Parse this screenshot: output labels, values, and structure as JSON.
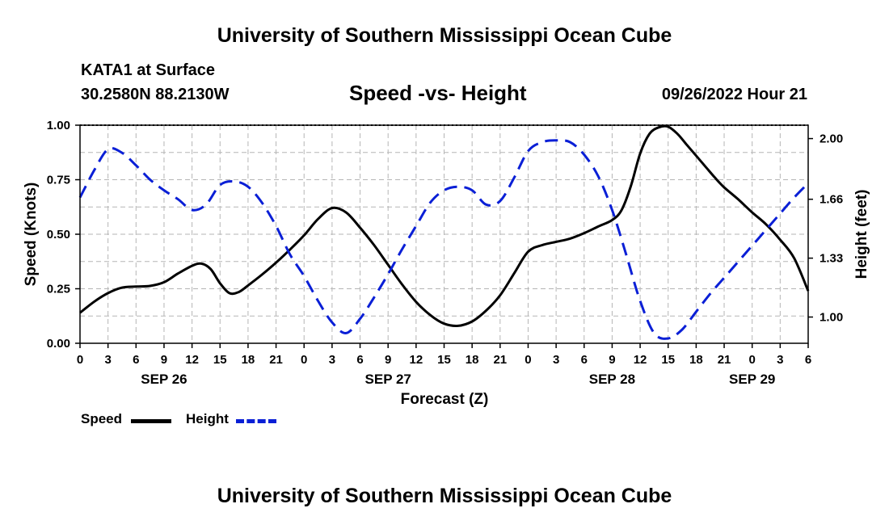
{
  "page": {
    "title_top": "University of Southern Mississippi Ocean Cube",
    "title_bottom": "University of Southern Mississippi Ocean Cube",
    "station": "KATA1 at Surface",
    "coords": "30.2580N  88.2130W",
    "subtitle": "Speed -vs- Height",
    "datetime": "09/26/2022 Hour 21"
  },
  "legend": {
    "speed_label": "Speed",
    "height_label": "Height"
  },
  "colors": {
    "speed": "#000000",
    "height": "#0a1fd6",
    "grid": "#b5b5b5"
  },
  "chart_data": {
    "type": "line",
    "title": "Speed -vs- Height",
    "xlabel": "Forecast (Z)",
    "ylabel": "Speed (Knots)",
    "y2label": "Height (feet)",
    "xlim": [
      0,
      78
    ],
    "ylim": [
      0,
      1
    ],
    "y2lim": [
      0.853,
      2.075
    ],
    "grid": true,
    "x_ticks": [
      0,
      3,
      6,
      9,
      12,
      15,
      18,
      21,
      24,
      27,
      30,
      33,
      36,
      39,
      42,
      45,
      48,
      51,
      54,
      57,
      60,
      63,
      66,
      69,
      72,
      75,
      78
    ],
    "x_tick_labels": [
      "0",
      "3",
      "6",
      "9",
      "12",
      "15",
      "18",
      "21",
      "0",
      "3",
      "6",
      "9",
      "12",
      "15",
      "18",
      "21",
      "0",
      "3",
      "6",
      "9",
      "12",
      "15",
      "18",
      "21",
      "0",
      "3",
      "6"
    ],
    "date_labels": [
      {
        "x": 9,
        "label": "SEP 26"
      },
      {
        "x": 33,
        "label": "SEP 27"
      },
      {
        "x": 57,
        "label": "SEP 28"
      },
      {
        "x": 72,
        "label": "SEP 29"
      }
    ],
    "y_ticks": [
      0.0,
      0.25,
      0.5,
      0.75,
      1.0
    ],
    "y_tick_labels": [
      "0.00",
      "0.25",
      "0.50",
      "0.75",
      "1.00"
    ],
    "y2_ticks": [
      1.0,
      1.33,
      1.66,
      2.0
    ],
    "y2_tick_labels": [
      "1.00",
      "1.33",
      "1.66",
      "2.00"
    ],
    "series": [
      {
        "name": "Speed",
        "axis": "left",
        "style": "solid",
        "x": [
          0,
          1.5,
          3,
          4.5,
          6,
          7.5,
          9,
          10.5,
          12,
          13,
          14,
          15,
          16,
          17,
          18,
          19.5,
          21,
          22.5,
          24,
          25.5,
          27,
          28.5,
          30,
          31.5,
          33,
          34.5,
          36,
          37.5,
          39,
          40.5,
          42,
          43.5,
          45,
          46.5,
          48,
          49.5,
          51,
          52.5,
          54,
          55.5,
          57,
          58,
          59,
          60,
          61,
          62,
          63,
          64,
          65,
          66,
          67,
          68,
          69,
          70.5,
          72,
          73.5,
          75,
          76.5,
          78
        ],
        "y": [
          0.14,
          0.19,
          0.23,
          0.255,
          0.26,
          0.263,
          0.28,
          0.32,
          0.355,
          0.365,
          0.34,
          0.275,
          0.23,
          0.235,
          0.265,
          0.315,
          0.37,
          0.43,
          0.495,
          0.57,
          0.62,
          0.6,
          0.53,
          0.45,
          0.36,
          0.27,
          0.19,
          0.13,
          0.09,
          0.08,
          0.1,
          0.15,
          0.22,
          0.32,
          0.42,
          0.45,
          0.465,
          0.48,
          0.505,
          0.535,
          0.565,
          0.61,
          0.72,
          0.87,
          0.96,
          0.99,
          0.993,
          0.96,
          0.91,
          0.86,
          0.81,
          0.76,
          0.715,
          0.66,
          0.6,
          0.545,
          0.475,
          0.39,
          0.24
        ]
      },
      {
        "name": "Height",
        "axis": "right",
        "style": "dashed",
        "x": [
          0,
          1.5,
          3,
          4.5,
          6,
          7.5,
          9,
          10.5,
          12,
          13.5,
          15,
          16.5,
          18,
          19.5,
          21,
          22.5,
          24,
          25.5,
          27,
          28.5,
          30,
          31.5,
          33,
          34.5,
          36,
          37.5,
          39,
          40.5,
          42,
          43.5,
          45,
          46.5,
          48,
          49.5,
          51,
          52.5,
          54,
          55.5,
          57,
          58.5,
          60,
          61.5,
          63,
          64.5,
          66,
          67.5,
          69,
          70.5,
          72,
          73.5,
          75,
          76.5,
          78
        ],
        "y": [
          1.67,
          1.82,
          1.94,
          1.92,
          1.85,
          1.77,
          1.71,
          1.66,
          1.6,
          1.63,
          1.74,
          1.76,
          1.73,
          1.64,
          1.51,
          1.35,
          1.23,
          1.09,
          0.97,
          0.91,
          0.99,
          1.11,
          1.24,
          1.38,
          1.51,
          1.64,
          1.71,
          1.73,
          1.71,
          1.63,
          1.65,
          1.78,
          1.93,
          1.98,
          1.99,
          1.98,
          1.91,
          1.79,
          1.6,
          1.35,
          1.09,
          0.91,
          0.88,
          0.93,
          1.03,
          1.13,
          1.22,
          1.31,
          1.4,
          1.49,
          1.58,
          1.67,
          1.75
        ]
      }
    ]
  }
}
